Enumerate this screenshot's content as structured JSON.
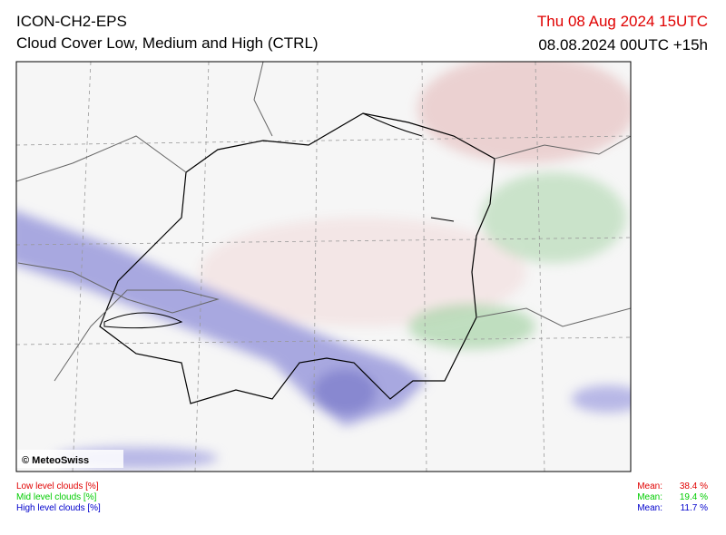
{
  "header": {
    "model": "ICON-CH2-EPS",
    "product": "Cloud Cover Low, Medium and High (CTRL)",
    "valid_time": "Thu 08 Aug 2024 15UTC",
    "run_time": "08.08.2024 00UTC +15h"
  },
  "map": {
    "copyright": "© MeteoSwiss"
  },
  "legend": [
    {
      "label": "Low level clouds [%]",
      "mean_label": "Mean:",
      "mean": "38.4 %",
      "color": "#e00000"
    },
    {
      "label": "Mid level clouds [%]",
      "mean_label": "Mean:",
      "mean": "19.4 %",
      "color": "#00cc00"
    },
    {
      "label": "High level clouds [%]",
      "mean_label": "Mean:",
      "mean": "11.7 %",
      "color": "#0000cc"
    }
  ]
}
